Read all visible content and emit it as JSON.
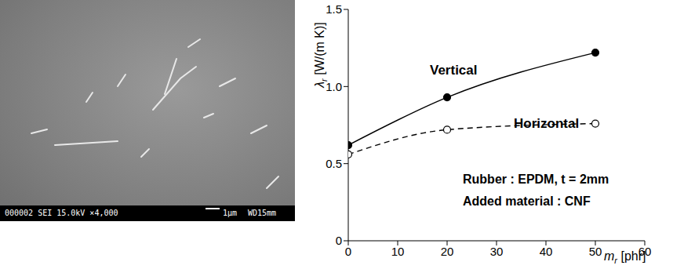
{
  "chart_data": {
    "type": "line",
    "x": [
      0,
      20,
      50
    ],
    "series": [
      {
        "name": "Vertical",
        "color": "#000000",
        "marker": "filled_circle",
        "line_style": "solid",
        "values": [
          0.62,
          0.93,
          1.22
        ]
      },
      {
        "name": "Horizontal",
        "color": "#000000",
        "marker": "open_circle",
        "line_style": "dashed",
        "values": [
          0.56,
          0.72,
          0.76
        ]
      }
    ],
    "xlabel": {
      "symbol": "m",
      "sub": "r",
      "unit": "[phr]"
    },
    "ylabel": {
      "symbol": "λ",
      "sub": "r",
      "unit": "[W/(m K)]"
    },
    "xlim": [
      0,
      60
    ],
    "xticks": [
      0,
      10,
      20,
      30,
      40,
      50,
      60
    ],
    "ylim": [
      0,
      1.5
    ],
    "yticks": [
      0,
      0.5,
      {
        "value": 1,
        "label": "1.0"
      },
      1.5
    ],
    "grid": false,
    "annotations": [
      "Rubber : EPDM, t = 2mm",
      "Added material : CNF"
    ]
  },
  "image": {
    "caption": "000002 SEI 15.0kV ×4,000",
    "scale_bar": "1μm",
    "working_distance": "WD15mm"
  }
}
